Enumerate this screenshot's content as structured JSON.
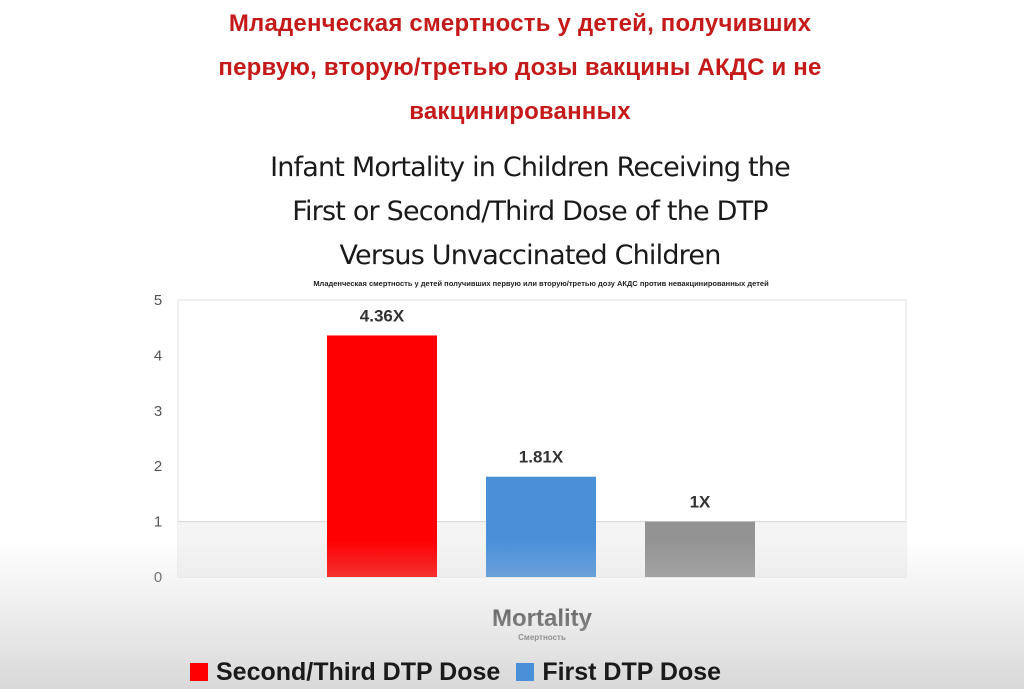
{
  "slide": {
    "ru_title_lines": [
      "Младенческая смертность у детей, получивших",
      "первую, вторую/третью дозы вакцины АКДС и не",
      "вакцинированных"
    ],
    "en_title_lines": [
      "Infant Mortality in Children Receiving the",
      "First or Second/Third Dose of the DTP",
      "Versus Unvaccinated Children"
    ]
  },
  "chart_data": {
    "type": "bar",
    "title": "Младенческая смертность у детей получивших первую или вторую/третью дозу АКДС против невакцинированных детей",
    "xlabel": "Mortality",
    "xlabel_sub": "Смертность",
    "ylabel": "",
    "ylim": [
      0,
      5
    ],
    "yticks": [
      "0",
      "1",
      "2",
      "3",
      "4",
      "5"
    ],
    "grid": "horizontal at 1",
    "series": [
      {
        "name": "Second/Third DTP Dose",
        "value": 4.36,
        "label": "4.36X",
        "color": "#fe0000"
      },
      {
        "name": "First DTP Dose",
        "value": 1.81,
        "label": "1.81X",
        "color": "#4a90d9"
      },
      {
        "name": "",
        "value": 1,
        "label": "1X",
        "color": "#939393"
      }
    ],
    "legend": {
      "placement": "bottom",
      "entries": [
        "Second/Third DTP Dose",
        "First DTP Dose"
      ]
    }
  }
}
